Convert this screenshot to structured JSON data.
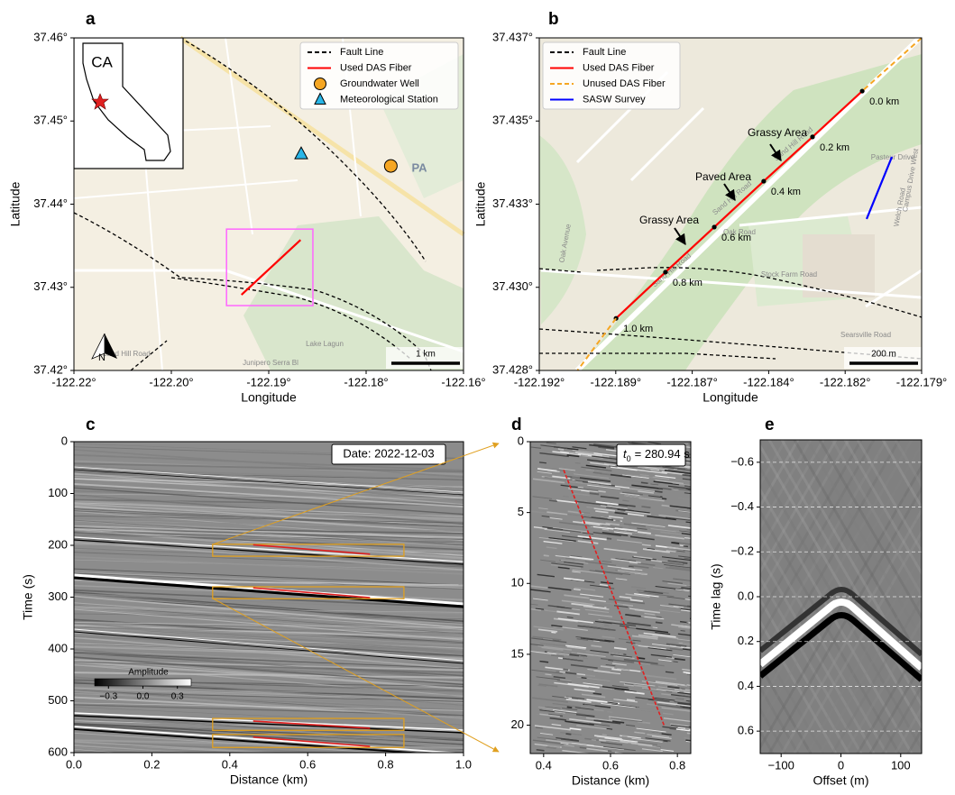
{
  "chart_data": [
    {
      "panel": "a",
      "type": "map",
      "xlabel": "Longitude",
      "ylabel": "Latitude",
      "xlim": [
        -122.22,
        -122.16
      ],
      "ylim": [
        37.42,
        37.46
      ],
      "xticks": [
        {
          "value": -122.22,
          "label": "-122.22°"
        },
        {
          "value": -122.205,
          "label": "-122.20°"
        },
        {
          "value": -122.19,
          "label": "-122.19°"
        },
        {
          "value": -122.175,
          "label": "-122.18°"
        },
        {
          "value": -122.16,
          "label": "-122.16°"
        }
      ],
      "yticks": [
        {
          "value": 37.42,
          "label": "37.42°"
        },
        {
          "value": 37.43,
          "label": "37.43°"
        },
        {
          "value": 37.44,
          "label": "37.44°"
        },
        {
          "value": 37.45,
          "label": "37.45°"
        },
        {
          "value": 37.46,
          "label": "37.46°"
        }
      ],
      "legend": "upper right",
      "series": [
        {
          "name": "Fault Line",
          "color": "#000000",
          "style": "dashed"
        },
        {
          "name": "Used DAS Fiber",
          "color": "#ff0000",
          "x": [
            -122.1942,
            -122.1851
          ],
          "y": [
            37.4291,
            37.4357
          ]
        },
        {
          "name": "Groundwater Well",
          "color": "#f5a623",
          "marker": "circle",
          "x": [
            -122.1712
          ],
          "y": [
            37.4446
          ]
        },
        {
          "name": "Meteorological Station",
          "color": "#29b6e8",
          "marker": "triangle",
          "x": [
            -122.185
          ],
          "y": [
            37.446
          ]
        }
      ],
      "box": {
        "color": "#ff66ff",
        "x": [
          -122.1965,
          -122.1832
        ],
        "y": [
          37.4278,
          37.437
        ]
      },
      "inset_label": "CA",
      "scale_label": "1 km",
      "north_label": "N",
      "map_labels": [
        "PA",
        "Sand Hill Road",
        "Junipero Serra Bl",
        "Lake Lagun"
      ]
    },
    {
      "panel": "b",
      "type": "map",
      "xlabel": "Longitude",
      "ylabel": "Latitude",
      "xlim": [
        -122.192,
        -122.179
      ],
      "ylim": [
        37.428,
        37.437
      ],
      "xticks": [
        {
          "value": -122.192,
          "label": "-122.192°"
        },
        {
          "value": -122.1894,
          "label": "-122.189°"
        },
        {
          "value": -122.1868,
          "label": "-122.187°"
        },
        {
          "value": -122.1842,
          "label": "-122.184°"
        },
        {
          "value": -122.1816,
          "label": "-122.182°"
        },
        {
          "value": -122.179,
          "label": "-122.179°"
        }
      ],
      "yticks": [
        {
          "value": 37.428,
          "label": "37.428°"
        },
        {
          "value": 37.43025,
          "label": "37.430°"
        },
        {
          "value": 37.4325,
          "label": "37.433°"
        },
        {
          "value": 37.43475,
          "label": "37.435°"
        },
        {
          "value": 37.437,
          "label": "37.437°"
        }
      ],
      "legend": "upper left",
      "series": [
        {
          "name": "Fault Line",
          "color": "#000000",
          "style": "dashed"
        },
        {
          "name": "Used DAS Fiber",
          "color": "#ff0000",
          "x": [
            -122.18102,
            -122.18271,
            -122.18437,
            -122.18605,
            -122.18771,
            -122.18939
          ],
          "y": [
            37.43556,
            37.43432,
            37.43312,
            37.43188,
            37.43066,
            37.42941
          ],
          "point_labels": [
            "0.0 km",
            "0.2 km",
            "0.4 km",
            "0.6 km",
            "0.8 km",
            "1.0 km"
          ]
        },
        {
          "name": "Unused DAS Fiber",
          "color": "#f5a623",
          "style": "dashed",
          "x": [
            -122.179,
            -122.18102,
            null,
            -122.18939,
            -122.1907
          ],
          "y": [
            37.437,
            37.43556,
            null,
            37.42941,
            37.428
          ]
        },
        {
          "name": "SASW Survey",
          "color": "#0000ff",
          "x": [
            -122.18001,
            -122.18087
          ],
          "y": [
            37.43378,
            37.4321
          ]
        }
      ],
      "annotations": [
        "Grassy Area",
        "Paved Area",
        "Grassy Area"
      ],
      "scale_label": "200 m",
      "map_labels": [
        "Sand Hill Road",
        "Sand Hill Road",
        "Sand Hill Road",
        "Stock Farm Road",
        "Oak Road",
        "Welch Road",
        "Pasteur Drive",
        "Campus Drive West",
        "Oak Avenue",
        "Searsville Road"
      ]
    },
    {
      "panel": "c",
      "type": "image",
      "xlabel": "Distance (km)",
      "ylabel": "Time (s)",
      "xlim": [
        0,
        1
      ],
      "ylim": [
        600,
        0
      ],
      "xticks": [
        {
          "value": 0,
          "label": "0.0"
        },
        0.2,
        0.4,
        0.6,
        0.8,
        {
          "value": 1,
          "label": "1.0"
        }
      ],
      "yticks": [
        0,
        100,
        200,
        300,
        400,
        500,
        600
      ],
      "note": "Date: 2022-12-03",
      "boxes": {
        "color": "#e0a020",
        "rects": [
          {
            "x": [
              0.356,
              0.847
            ],
            "y": [
              198,
              221
            ]
          },
          {
            "x": [
              0.356,
              0.847
            ],
            "y": [
              280,
              303
            ]
          },
          {
            "x": [
              0.356,
              0.847
            ],
            "y": [
              534,
              557
            ]
          },
          {
            "x": [
              0.356,
              0.847
            ],
            "y": [
              565,
              590
            ]
          }
        ]
      },
      "picks": {
        "color": "#e02020",
        "segments": [
          {
            "x": [
              0.46,
              0.76
            ],
            "y": [
              199,
              217
            ]
          },
          {
            "x": [
              0.46,
              0.76
            ],
            "y": [
              282,
              301
            ]
          },
          {
            "x": [
              0.46,
              0.76
            ],
            "y": [
              539,
              553
            ]
          },
          {
            "x": [
              0.46,
              0.76
            ],
            "y": [
              570,
              588
            ]
          }
        ]
      },
      "colorbar": {
        "label": "Amplitude",
        "lim": [
          -0.42,
          0.42
        ],
        "ticks": [
          {
            "value": -0.3,
            "label": "−0.3"
          },
          {
            "value": 0,
            "label": "0.0"
          },
          0.3
        ]
      }
    },
    {
      "panel": "d",
      "type": "image",
      "xlabel": "Distance (km)",
      "xlim": [
        0.36,
        0.84
      ],
      "ylim": [
        22,
        0
      ],
      "xticks": [
        0.4,
        0.6,
        0.8
      ],
      "yticks": [
        0,
        5,
        10,
        15,
        20
      ],
      "note": {
        "symbol": "t",
        "subscript": "0",
        "text": "= 280.94 s"
      },
      "pick_line": {
        "color": "#e02020",
        "x": [
          0.46,
          0.76
        ],
        "y": [
          2,
          20
        ]
      }
    },
    {
      "panel": "e",
      "type": "image",
      "xlabel": "Offset (m)",
      "ylabel": "Time lag (s)",
      "xlim": [
        -135,
        135
      ],
      "ylim": [
        0.7,
        -0.7
      ],
      "xticks": [
        {
          "value": -100,
          "label": "−100"
        },
        0,
        100
      ],
      "yticks": [
        {
          "value": -0.6,
          "label": "−0.6"
        },
        {
          "value": -0.4,
          "label": "−0.4"
        },
        {
          "value": -0.2,
          "label": "−0.2"
        },
        {
          "value": 0,
          "label": "0.0"
        },
        0.2,
        0.4,
        0.6
      ],
      "grid": true
    }
  ]
}
